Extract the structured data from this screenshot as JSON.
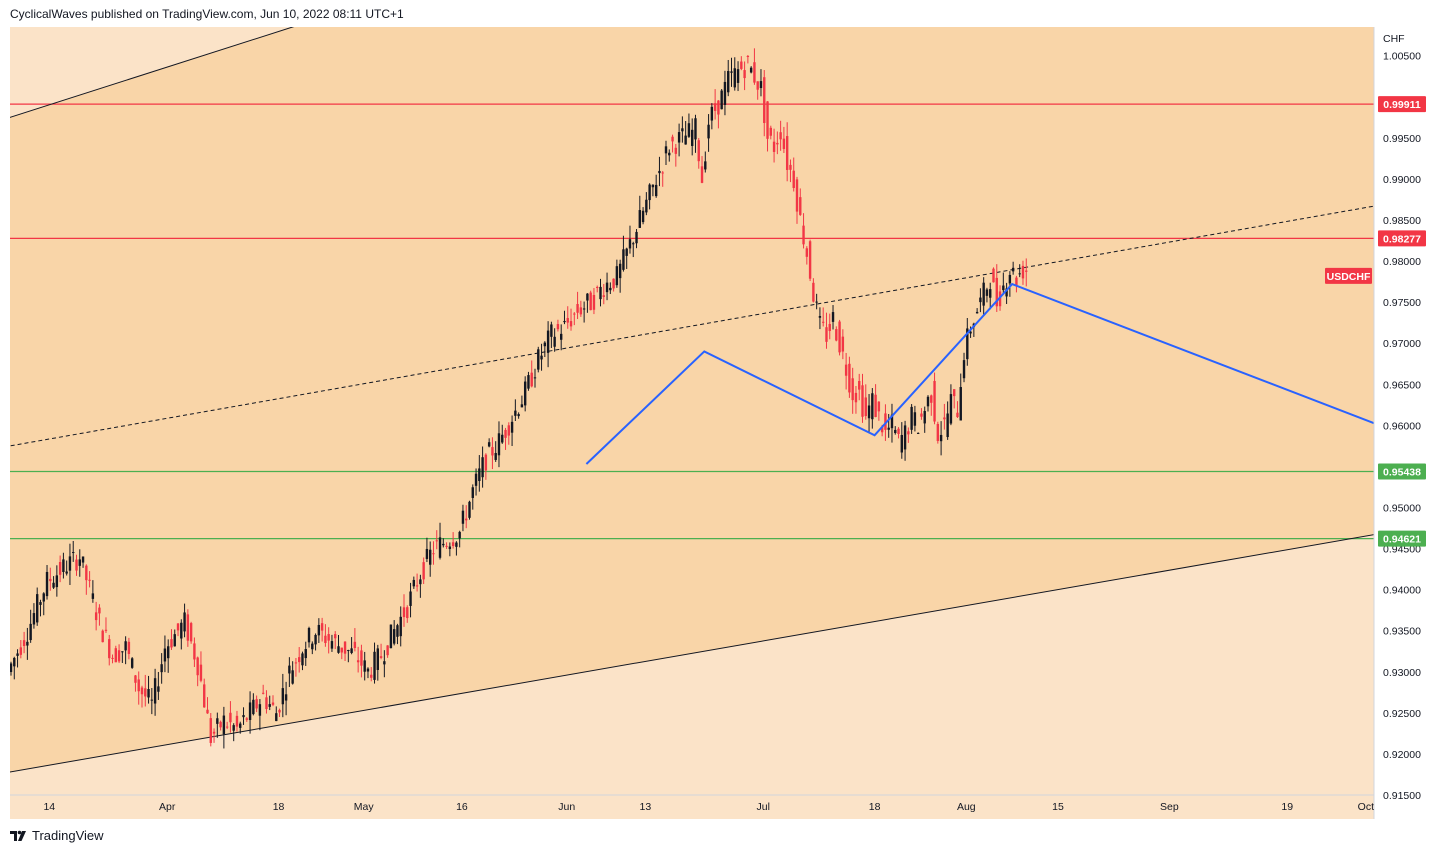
{
  "header": {
    "publisher_line": "CyclicalWaves published on TradingView.com, Jun 10, 2022 08:11 UTC+1"
  },
  "footer": {
    "brand": "TradingView"
  },
  "chart_data": {
    "type": "candlestick",
    "symbol": "USDCHF",
    "currency": "CHF",
    "ylim": [
      0.915,
      1.0085
    ],
    "y_ticks": [
      "1.00500",
      "0.99500",
      "0.99000",
      "0.98500",
      "0.98000",
      "0.97500",
      "0.97000",
      "0.96500",
      "0.96000",
      "0.95000",
      "0.94500",
      "0.94000",
      "0.93500",
      "0.93000",
      "0.92500",
      "0.92000",
      "0.91500"
    ],
    "x_ticks": [
      {
        "label": "14",
        "date": "2022-03-14"
      },
      {
        "label": "Apr",
        "date": "2022-04-01"
      },
      {
        "label": "18",
        "date": "2022-04-18"
      },
      {
        "label": "May",
        "date": "2022-05-01"
      },
      {
        "label": "16",
        "date": "2022-05-16"
      },
      {
        "label": "Jun",
        "date": "2022-06-01"
      },
      {
        "label": "13",
        "date": "2022-06-13"
      },
      {
        "label": "Jul",
        "date": "2022-07-01"
      },
      {
        "label": "18",
        "date": "2022-07-18"
      },
      {
        "label": "Aug",
        "date": "2022-08-01"
      },
      {
        "label": "15",
        "date": "2022-08-15"
      },
      {
        "label": "Sep",
        "date": "2022-09-01"
      },
      {
        "label": "19",
        "date": "2022-09-19"
      },
      {
        "label": "Oct",
        "date": "2022-10-01"
      }
    ],
    "horizontal_levels": [
      {
        "value": 0.99911,
        "label": "0.99911",
        "color": "#f23645"
      },
      {
        "value": 0.98277,
        "label": "0.98277",
        "color": "#f23645"
      },
      {
        "value": 0.95438,
        "label": "0.95438",
        "color": "#4caf50"
      },
      {
        "value": 0.94621,
        "label": "0.94621",
        "color": "#4caf50"
      }
    ],
    "last_price_label": {
      "text": "USDCHF",
      "value": 0.9782,
      "color": "#f23645"
    },
    "channel": {
      "upper": [
        {
          "date": "2022-03-08",
          "value": 0.9975
        },
        {
          "date": "2022-06-27",
          "value": 1.0258
        }
      ],
      "lower": [
        {
          "date": "2022-03-08",
          "value": 0.9178
        },
        {
          "date": "2022-10-08",
          "value": 0.9475
        }
      ],
      "mid_dashed": [
        {
          "date": "2022-03-08",
          "value": 0.9575
        },
        {
          "date": "2022-10-08",
          "value": 0.9875
        }
      ]
    },
    "projection": [
      {
        "date": "2022-06-04",
        "value": 0.9553
      },
      {
        "date": "2022-06-22",
        "value": 0.969
      },
      {
        "date": "2022-07-18",
        "value": 0.9588
      },
      {
        "date": "2022-08-08",
        "value": 0.9772
      },
      {
        "date": "2022-10-08",
        "value": 0.9585
      }
    ],
    "price_path": [
      [
        0,
        0.93
      ],
      [
        3,
        0.935
      ],
      [
        6,
        0.941
      ],
      [
        9,
        0.943
      ],
      [
        11,
        0.944
      ],
      [
        14,
        0.936
      ],
      [
        16,
        0.932
      ],
      [
        18,
        0.933
      ],
      [
        20,
        0.928
      ],
      [
        22,
        0.926
      ],
      [
        24,
        0.933
      ],
      [
        27,
        0.936
      ],
      [
        29,
        0.931
      ],
      [
        31,
        0.922
      ],
      [
        33,
        0.924
      ],
      [
        35,
        0.923
      ],
      [
        37,
        0.925
      ],
      [
        39,
        0.927
      ],
      [
        41,
        0.925
      ],
      [
        43,
        0.93
      ],
      [
        45,
        0.933
      ],
      [
        47,
        0.935
      ],
      [
        49,
        0.934
      ],
      [
        51,
        0.933
      ],
      [
        53,
        0.932
      ],
      [
        55,
        0.93
      ],
      [
        57,
        0.932
      ],
      [
        59,
        0.935
      ],
      [
        61,
        0.938
      ],
      [
        63,
        0.942
      ],
      [
        65,
        0.945
      ],
      [
        67,
        0.946
      ],
      [
        69,
        0.947
      ],
      [
        71,
        0.952
      ],
      [
        73,
        0.956
      ],
      [
        75,
        0.958
      ],
      [
        77,
        0.961
      ],
      [
        79,
        0.964
      ],
      [
        81,
        0.968
      ],
      [
        83,
        0.971
      ],
      [
        85,
        0.972
      ],
      [
        87,
        0.974
      ],
      [
        89,
        0.975
      ],
      [
        91,
        0.977
      ],
      [
        93,
        0.978
      ],
      [
        95,
        0.982
      ],
      [
        97,
        0.986
      ],
      [
        99,
        0.99
      ],
      [
        101,
        0.994
      ],
      [
        103,
        0.995
      ],
      [
        105,
        0.996
      ],
      [
        106,
        0.99
      ],
      [
        107,
        0.997
      ],
      [
        109,
        1.0
      ],
      [
        110,
        1.002
      ],
      [
        112,
        1.0035
      ],
      [
        113,
        1.004
      ],
      [
        115,
        1.001
      ],
      [
        116,
        0.995
      ],
      [
        117,
        0.994
      ],
      [
        118,
        0.996
      ],
      [
        119,
        0.992
      ],
      [
        120,
        0.99
      ],
      [
        121,
        0.985
      ],
      [
        122,
        0.981
      ],
      [
        123,
        0.976
      ],
      [
        124,
        0.972
      ],
      [
        125,
        0.971
      ],
      [
        126,
        0.973
      ],
      [
        127,
        0.97
      ],
      [
        128,
        0.967
      ],
      [
        129,
        0.964
      ],
      [
        130,
        0.964
      ],
      [
        131,
        0.961
      ],
      [
        132,
        0.963
      ],
      [
        133,
        0.961
      ],
      [
        134,
        0.959
      ],
      [
        135,
        0.96
      ],
      [
        136,
        0.958
      ],
      [
        137,
        0.959
      ],
      [
        138,
        0.961
      ],
      [
        139,
        0.96
      ],
      [
        140,
        0.962
      ],
      [
        141,
        0.964
      ],
      [
        142,
        0.959
      ],
      [
        143,
        0.96
      ],
      [
        144,
        0.963
      ],
      [
        145,
        0.962
      ],
      [
        146,
        0.969
      ],
      [
        147,
        0.972
      ],
      [
        148,
        0.974
      ],
      [
        149,
        0.976
      ],
      [
        150,
        0.978
      ],
      [
        151,
        0.975
      ],
      [
        152,
        0.977
      ],
      [
        153,
        0.979
      ],
      [
        154,
        0.978
      ],
      [
        155,
        0.979
      ]
    ]
  }
}
